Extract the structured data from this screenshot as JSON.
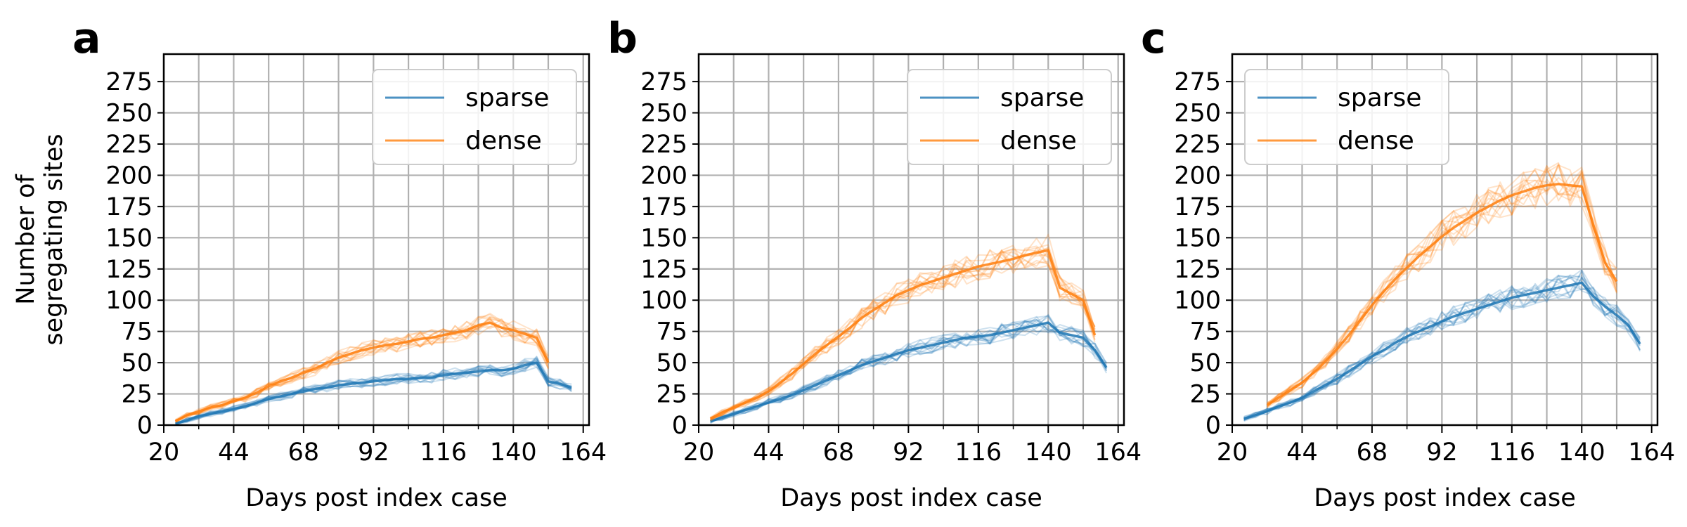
{
  "chart_data": [
    {
      "panel": "a",
      "type": "line",
      "xlabel": "Days post index case",
      "ylabel": "Number of segregating sites",
      "xlim": [
        20,
        166
      ],
      "ylim": [
        0,
        297
      ],
      "xticks": [
        20,
        44,
        68,
        92,
        116,
        140,
        164
      ],
      "xticks_minor": [
        32,
        56,
        80,
        104,
        128,
        152
      ],
      "yticks": [
        0,
        25,
        50,
        75,
        100,
        125,
        150,
        175,
        200,
        225,
        250,
        275
      ],
      "grid": true,
      "legend": {
        "position": "top-right",
        "entries": [
          "sparse",
          "dense"
        ]
      },
      "series": [
        {
          "name": "sparse",
          "color": "#1f77b4",
          "x": [
            24,
            28,
            32,
            36,
            40,
            44,
            48,
            52,
            56,
            60,
            64,
            68,
            72,
            76,
            80,
            84,
            88,
            92,
            96,
            100,
            104,
            108,
            112,
            116,
            120,
            124,
            128,
            132,
            136,
            140,
            144,
            148,
            152,
            156,
            160
          ],
          "y": [
            1,
            4,
            7,
            9,
            11,
            13,
            15,
            18,
            21,
            23,
            25,
            27,
            29,
            30,
            32,
            33,
            34,
            35,
            36,
            37,
            37,
            38,
            38,
            40,
            41,
            42,
            43,
            44,
            44,
            45,
            48,
            50,
            35,
            33,
            30
          ]
        },
        {
          "name": "dense",
          "color": "#ff7f0e",
          "x": [
            24,
            28,
            32,
            36,
            40,
            44,
            48,
            52,
            56,
            60,
            64,
            68,
            72,
            76,
            80,
            84,
            88,
            92,
            96,
            100,
            104,
            108,
            112,
            116,
            120,
            124,
            128,
            132,
            136,
            140,
            144,
            148,
            152
          ],
          "y": [
            3,
            8,
            11,
            14,
            16,
            19,
            22,
            26,
            31,
            35,
            38,
            42,
            45,
            50,
            54,
            57,
            60,
            62,
            64,
            65,
            67,
            69,
            70,
            72,
            74,
            76,
            80,
            82,
            78,
            76,
            73,
            70,
            50
          ]
        }
      ]
    },
    {
      "panel": "b",
      "type": "line",
      "xlabel": "Days post index case",
      "ylabel": "",
      "xlim": [
        20,
        166
      ],
      "ylim": [
        0,
        297
      ],
      "xticks": [
        20,
        44,
        68,
        92,
        116,
        140,
        164
      ],
      "xticks_minor": [
        32,
        56,
        80,
        104,
        128,
        152
      ],
      "yticks": [
        0,
        25,
        50,
        75,
        100,
        125,
        150,
        175,
        200,
        225,
        250,
        275
      ],
      "grid": true,
      "legend": {
        "position": "top-right",
        "entries": [
          "sparse",
          "dense"
        ]
      },
      "series": [
        {
          "name": "sparse",
          "color": "#1f77b4",
          "x": [
            24,
            28,
            32,
            36,
            40,
            44,
            48,
            52,
            56,
            60,
            64,
            68,
            72,
            76,
            80,
            84,
            88,
            92,
            96,
            100,
            104,
            108,
            112,
            116,
            120,
            124,
            128,
            132,
            136,
            140,
            144,
            148,
            152,
            156,
            160
          ],
          "y": [
            3,
            6,
            9,
            12,
            15,
            18,
            21,
            24,
            28,
            32,
            36,
            40,
            44,
            48,
            51,
            54,
            57,
            60,
            62,
            64,
            66,
            68,
            70,
            71,
            72,
            74,
            76,
            78,
            80,
            82,
            74,
            72,
            70,
            60,
            46
          ]
        },
        {
          "name": "dense",
          "color": "#ff7f0e",
          "x": [
            24,
            28,
            32,
            36,
            40,
            44,
            48,
            52,
            56,
            60,
            64,
            68,
            72,
            76,
            80,
            84,
            88,
            92,
            96,
            100,
            104,
            108,
            112,
            116,
            120,
            124,
            128,
            132,
            136,
            140,
            144,
            148,
            152,
            156
          ],
          "y": [
            5,
            10,
            14,
            18,
            22,
            27,
            34,
            41,
            49,
            57,
            64,
            71,
            78,
            86,
            92,
            98,
            104,
            108,
            112,
            115,
            118,
            121,
            124,
            127,
            129,
            131,
            133,
            136,
            138,
            140,
            110,
            105,
            100,
            72
          ]
        }
      ]
    },
    {
      "panel": "c",
      "type": "line",
      "xlabel": "Days post index case",
      "ylabel": "",
      "xlim": [
        20,
        166
      ],
      "ylim": [
        0,
        297
      ],
      "xticks": [
        20,
        44,
        68,
        92,
        116,
        140,
        164
      ],
      "xticks_minor": [
        32,
        56,
        80,
        104,
        128,
        152
      ],
      "yticks": [
        0,
        25,
        50,
        75,
        100,
        125,
        150,
        175,
        200,
        225,
        250,
        275
      ],
      "grid": true,
      "legend": {
        "position": "top-left",
        "entries": [
          "sparse",
          "dense"
        ]
      },
      "series": [
        {
          "name": "sparse",
          "color": "#1f77b4",
          "x": [
            24,
            28,
            32,
            36,
            40,
            44,
            48,
            52,
            56,
            60,
            64,
            68,
            72,
            76,
            80,
            84,
            88,
            92,
            96,
            100,
            104,
            108,
            112,
            116,
            120,
            124,
            128,
            132,
            136,
            140,
            144,
            148,
            152,
            156,
            160
          ],
          "y": [
            5,
            8,
            11,
            15,
            18,
            22,
            27,
            32,
            37,
            43,
            49,
            55,
            60,
            66,
            71,
            75,
            79,
            83,
            87,
            90,
            93,
            96,
            99,
            102,
            104,
            106,
            108,
            110,
            112,
            114,
            103,
            95,
            88,
            80,
            65
          ]
        },
        {
          "name": "dense",
          "color": "#ff7f0e",
          "x": [
            32,
            36,
            40,
            44,
            48,
            52,
            56,
            60,
            64,
            68,
            72,
            76,
            80,
            84,
            88,
            92,
            96,
            100,
            104,
            108,
            112,
            116,
            120,
            124,
            128,
            132,
            136,
            140,
            144,
            148,
            152
          ],
          "y": [
            16,
            22,
            28,
            34,
            42,
            51,
            61,
            72,
            84,
            96,
            107,
            117,
            126,
            135,
            143,
            151,
            158,
            164,
            170,
            175,
            180,
            184,
            187,
            190,
            192,
            193,
            192,
            191,
            160,
            130,
            115
          ]
        }
      ]
    }
  ]
}
